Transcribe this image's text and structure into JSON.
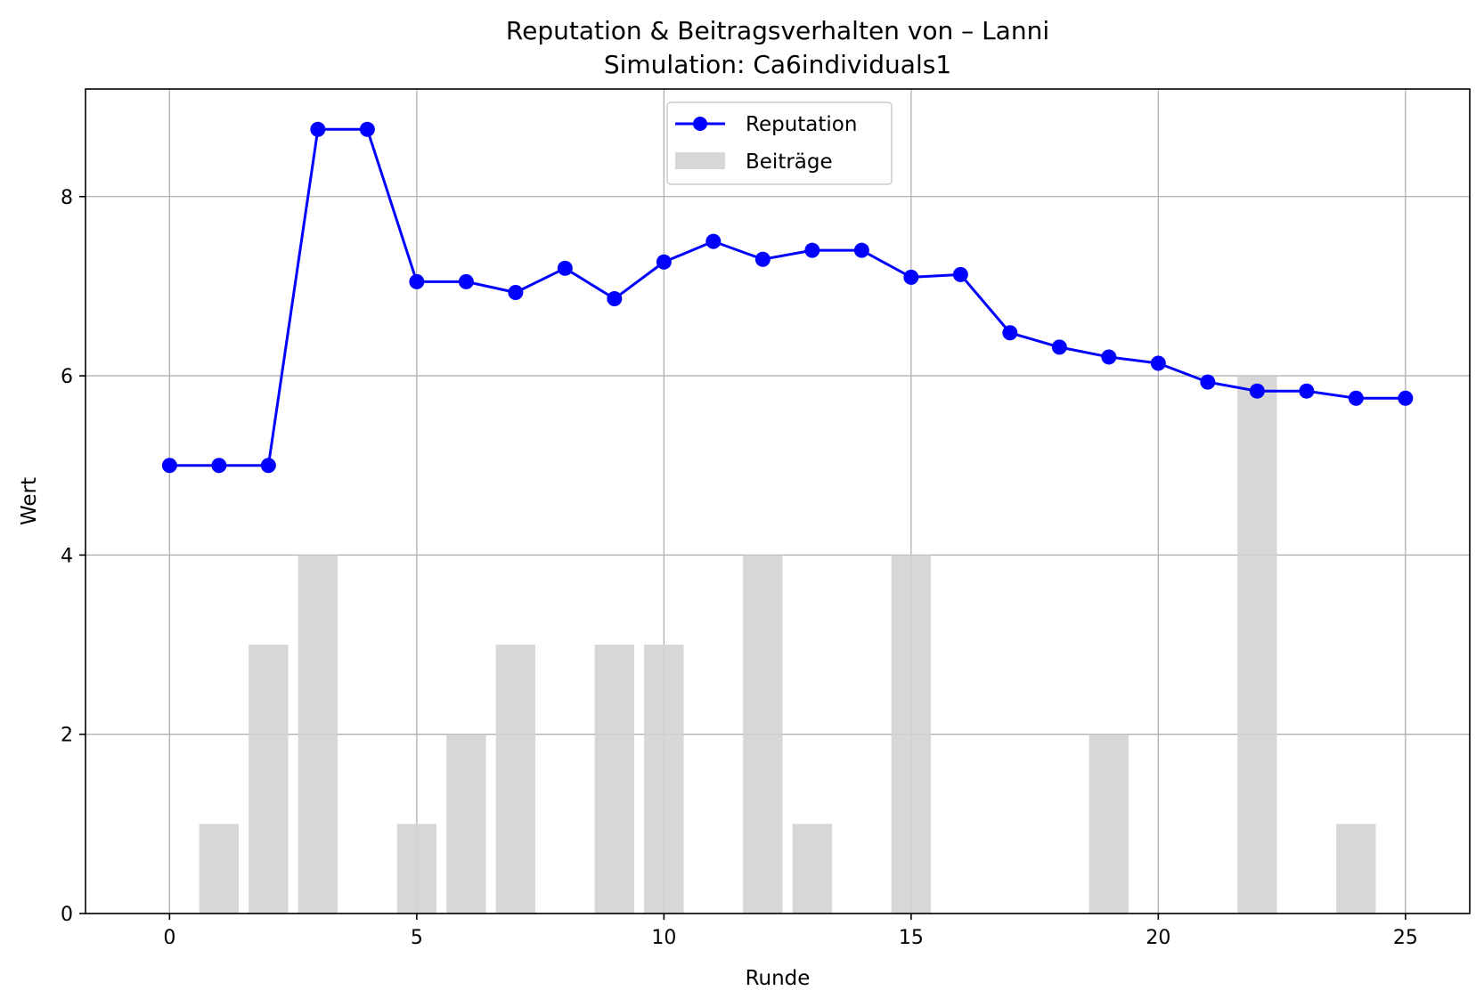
{
  "chart_data": {
    "type": "bar+line",
    "title": "Reputation & Beitragsverhalten von – Lanni",
    "subtitle": "Simulation: Ca6individuals1",
    "xlabel": "Runde",
    "ylabel": "Wert",
    "xlim": [
      -1.7,
      26.3
    ],
    "ylim": [
      0,
      9.2
    ],
    "xticks": [
      0,
      5,
      10,
      15,
      20,
      25
    ],
    "yticks": [
      0,
      2,
      4,
      6,
      8
    ],
    "grid": true,
    "legend_position": "top-center",
    "series": [
      {
        "name": "Reputation",
        "kind": "line",
        "marker": "circle",
        "color": "#0000ff",
        "x": [
          0,
          1,
          2,
          3,
          4,
          5,
          6,
          7,
          8,
          9,
          10,
          11,
          12,
          13,
          14,
          15,
          16,
          17,
          18,
          19,
          20,
          21,
          22,
          23,
          24,
          25
        ],
        "values": [
          5.0,
          5.0,
          5.0,
          8.75,
          8.75,
          7.05,
          7.05,
          6.93,
          7.2,
          6.86,
          7.27,
          7.5,
          7.3,
          7.4,
          7.4,
          7.1,
          7.13,
          6.48,
          6.32,
          6.21,
          6.14,
          5.93,
          5.83,
          5.83,
          5.75,
          5.75
        ]
      },
      {
        "name": "Beiträge",
        "kind": "bar",
        "color": "#d3d3d3",
        "x": [
          0,
          1,
          2,
          3,
          4,
          5,
          6,
          7,
          8,
          9,
          10,
          11,
          12,
          13,
          14,
          15,
          16,
          17,
          18,
          19,
          20,
          21,
          22,
          23,
          24,
          25
        ],
        "values": [
          0,
          1,
          3,
          4,
          0,
          1,
          2,
          3,
          0,
          3,
          3,
          0,
          4,
          1,
          0,
          4,
          0,
          0,
          0,
          2,
          0,
          0,
          6,
          0,
          1,
          0
        ]
      }
    ]
  }
}
